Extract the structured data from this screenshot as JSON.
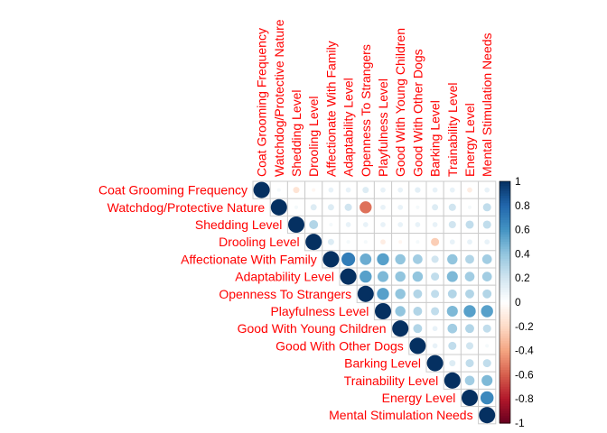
{
  "chart_data": {
    "type": "heatmap",
    "style": "corrplot-upper-circles",
    "variables": [
      "Coat Grooming Frequency",
      "Watchdog/Protective Nature",
      "Shedding Level",
      "Drooling Level",
      "Affectionate With Family",
      "Adaptability Level",
      "Openness To Strangers",
      "Playfulness Level",
      "Good With Young Children",
      "Good With Other Dogs",
      "Barking Level",
      "Trainability Level",
      "Energy Level",
      "Mental Stimulation Needs"
    ],
    "matrix": [
      [
        1.0,
        0.05,
        -0.15,
        -0.05,
        0.1,
        0.1,
        0.15,
        0.1,
        0.1,
        0.12,
        0.1,
        0.1,
        -0.1,
        0.1
      ],
      [
        0.05,
        1.0,
        0.05,
        0.15,
        0.15,
        0.2,
        -0.55,
        0.1,
        0.1,
        0.05,
        0.15,
        0.2,
        0.05,
        0.25
      ],
      [
        -0.15,
        0.05,
        1.0,
        0.3,
        0.05,
        0.1,
        0.1,
        0.1,
        0.1,
        0.1,
        0.1,
        0.2,
        0.25,
        0.25
      ],
      [
        -0.05,
        0.15,
        0.3,
        1.0,
        0.15,
        0.05,
        0.05,
        -0.1,
        -0.05,
        0.05,
        -0.25,
        0.1,
        0.1,
        0.1
      ],
      [
        0.1,
        0.15,
        0.05,
        0.15,
        1.0,
        0.7,
        0.5,
        0.55,
        0.4,
        0.35,
        0.2,
        0.4,
        0.3,
        0.35
      ],
      [
        0.1,
        0.2,
        0.1,
        0.05,
        0.7,
        1.0,
        0.55,
        0.45,
        0.4,
        0.4,
        0.25,
        0.45,
        0.35,
        0.35
      ],
      [
        0.15,
        -0.55,
        0.1,
        0.05,
        0.5,
        0.55,
        1.0,
        0.55,
        0.4,
        0.3,
        0.25,
        0.3,
        0.3,
        0.3
      ],
      [
        0.1,
        0.1,
        0.1,
        -0.1,
        0.55,
        0.45,
        0.55,
        1.0,
        0.4,
        0.3,
        0.25,
        0.45,
        0.55,
        0.55
      ],
      [
        0.1,
        0.1,
        0.1,
        -0.05,
        0.4,
        0.4,
        0.4,
        0.4,
        1.0,
        0.3,
        0.1,
        0.35,
        0.3,
        0.25
      ],
      [
        0.12,
        0.05,
        0.1,
        0.05,
        0.35,
        0.4,
        0.3,
        0.3,
        0.3,
        1.0,
        0.1,
        0.25,
        0.2,
        0.05
      ],
      [
        0.1,
        0.15,
        0.1,
        -0.25,
        0.2,
        0.25,
        0.25,
        0.25,
        0.1,
        0.1,
        1.0,
        0.15,
        0.25,
        0.25
      ],
      [
        0.1,
        0.2,
        0.2,
        0.1,
        0.4,
        0.45,
        0.3,
        0.45,
        0.35,
        0.25,
        0.15,
        1.0,
        0.35,
        0.45
      ],
      [
        -0.1,
        0.05,
        0.25,
        0.1,
        0.3,
        0.35,
        0.3,
        0.55,
        0.3,
        0.2,
        0.25,
        0.35,
        1.0,
        0.65
      ],
      [
        0.1,
        0.25,
        0.25,
        0.1,
        0.35,
        0.35,
        0.3,
        0.55,
        0.25,
        0.05,
        0.25,
        0.45,
        0.65,
        1.0
      ]
    ],
    "colorbar": {
      "range": [
        -1,
        1
      ],
      "tick_labels": [
        "1",
        "0.8",
        "0.6",
        "0.4",
        "0.2",
        "0",
        "-0.2",
        "-0.4",
        "-0.6",
        "-0.8",
        "-1"
      ],
      "tick_values": [
        1,
        0.8,
        0.6,
        0.4,
        0.2,
        0,
        -0.2,
        -0.4,
        -0.6,
        -0.8,
        -1
      ]
    },
    "label_color": "#ff0000",
    "grid_color": "#cccccc"
  }
}
